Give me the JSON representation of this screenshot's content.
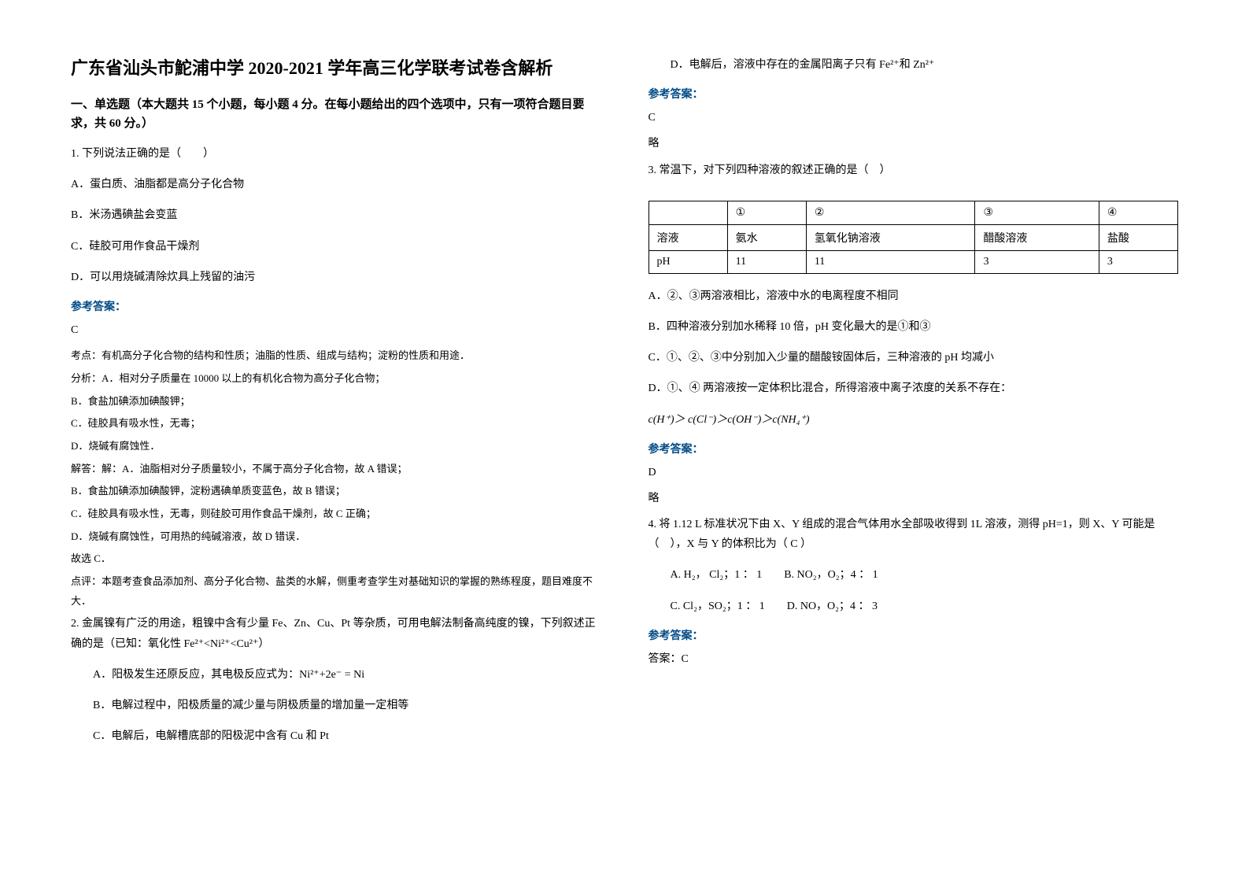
{
  "title": "广东省汕头市鮀浦中学 2020-2021 学年高三化学联考试卷含解析",
  "section1_header": "一、单选题（本大题共 15 个小题，每小题 4 分。在每小题给出的四个选项中，只有一项符合题目要求，共 60 分。）",
  "q1": {
    "stem": "1. 下列说法正确的是（　　）",
    "optA": "A．蛋白质、油脂都是高分子化合物",
    "optB": "B．米汤遇碘盐会变蓝",
    "optC": "C．硅胶可用作食品干燥剂",
    "optD": "D．可以用烧碱清除炊具上残留的油污",
    "answer_label": "参考答案：",
    "answer": "C",
    "a1": "考点：有机高分子化合物的结构和性质；油脂的性质、组成与结构；淀粉的性质和用途．",
    "a2": "分析：A．相对分子质量在 10000 以上的有机化合物为高分子化合物；",
    "a3": "B．食盐加碘添加碘酸钾；",
    "a4": "C．硅胶具有吸水性，无毒；",
    "a5": "D．烧碱有腐蚀性．",
    "a6": "解答：解：A．油脂相对分子质量较小，不属于高分子化合物，故 A 错误；",
    "a7": "B．食盐加碘添加碘酸钾，淀粉遇碘单质变蓝色，故 B 错误；",
    "a8": "C．硅胶具有吸水性，无毒，则硅胶可用作食品干燥剂，故 C 正确；",
    "a9": "D．烧碱有腐蚀性，可用热的纯碱溶液，故 D 错误．",
    "a10": "故选 C．",
    "a11": "点评：本题考查食品添加剂、高分子化合物、盐类的水解，侧重考查学生对基础知识的掌握的熟练程度，题目难度不大．"
  },
  "q2": {
    "stem": "2. 金属镍有广泛的用途，粗镍中含有少量 Fe、Zn、Cu、Pt 等杂质，可用电解法制备高纯度的镍，下列叙述正确的是（已知：氧化性 Fe²⁺<Ni²⁺<Cu²⁺）",
    "optA": "A．阳极发生还原反应，其电极反应式为：Ni²⁺+2e⁻ = Ni",
    "optB": "B．电解过程中，阳极质量的减少量与阴极质量的增加量一定相等",
    "optC": "C．电解后，电解槽底部的阳极泥中含有 Cu 和 Pt",
    "optD": "D．电解后，溶液中存在的金属阳离子只有 Fe²⁺和 Zn²⁺",
    "answer_label": "参考答案：",
    "answer": "C",
    "brief": "略"
  },
  "q3": {
    "stem": "3. 常温下，对下列四种溶液的叙述正确的是（　）",
    "table": {
      "header": [
        "",
        "①",
        "②",
        "③",
        "④"
      ],
      "row1": [
        "溶液",
        "氨水",
        "氢氧化钠溶液",
        "醋酸溶液",
        "盐酸"
      ],
      "row2": [
        "pH",
        "11",
        "11",
        "3",
        "3"
      ]
    },
    "optA": "A．②、③两溶液相比，溶液中水的电离程度不相同",
    "optB": "B．四种溶液分别加水稀释 10 倍，pH 变化最大的是①和③",
    "optC": "C．①、②、③中分别加入少量的醋酸铵固体后，三种溶液的 pH 均减小",
    "optD": "D．①、④ 两溶液按一定体积比混合，所得溶液中离子浓度的关系不存在：",
    "formula": "c(H⁺)＞ c(Cl⁻)＞c(OH⁻)＞c(NH₄⁺)",
    "answer_label": "参考答案：",
    "answer": "D",
    "brief": "略"
  },
  "q4": {
    "stem": "4. 将 1.12 L 标准状况下由 X、Y 组成的混合气体用水全部吸收得到 1L 溶液，测得 pH=1，则 X、Y 可能是（　），X 与 Y 的体积比为（ C ）",
    "optA": "A. H₂， Cl₂；1 ： 1　　B. NO₂，O₂；4 ： 1",
    "optC": "C. Cl₂，SO₂；1 ： 1　　D. NO，O₂；4 ： 3",
    "answer_label": "参考答案：",
    "answer": "答案：C"
  }
}
